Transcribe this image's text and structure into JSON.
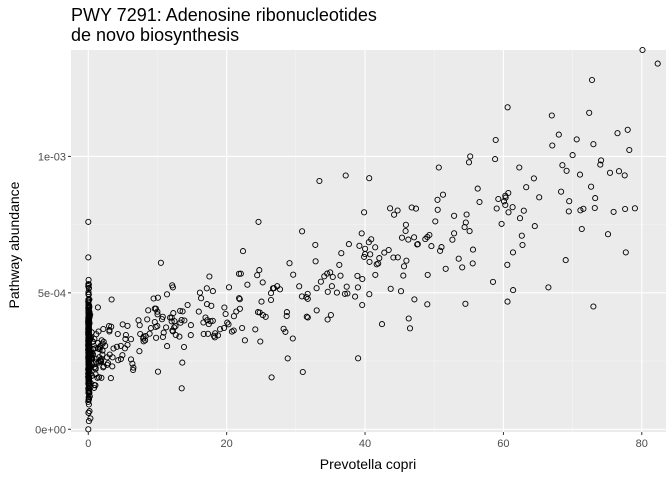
{
  "chart_data": {
    "type": "scatter",
    "title_lines": [
      "PWY 7291: Adenosine ribonucleotides",
      "de novo biosynthesis"
    ],
    "xlabel": "Prevotella copri",
    "ylabel": "Pathway abundance",
    "xlim": [
      -2.5,
      83.5
    ],
    "ylim": [
      -1e-05,
      0.00139
    ],
    "x_ticks": [
      0,
      20,
      40,
      60,
      80
    ],
    "x_tick_labels": [
      "0",
      "20",
      "40",
      "60",
      "80"
    ],
    "y_ticks": [
      0,
      0.0005,
      0.001
    ],
    "y_tick_labels": [
      "0e+00",
      "5e-04",
      "1e-03"
    ],
    "grid": true,
    "marker": "open-circle",
    "colors": {
      "panel": "#ebebeb",
      "grid_major": "#ffffff",
      "grid_minor": "#f5f5f5",
      "point": "#000000"
    },
    "highlight_points": [
      {
        "x": 0,
        "y": 0.00076
      },
      {
        "x": 0,
        "y": 0.00063
      },
      {
        "x": 0,
        "y": 0.0
      },
      {
        "x": 0.3,
        "y": 4e-05
      },
      {
        "x": 80.1,
        "y": 0.00139
      },
      {
        "x": 82.3,
        "y": 0.00134
      },
      {
        "x": 72.8,
        "y": 0.00128
      },
      {
        "x": 60.6,
        "y": 0.00118
      },
      {
        "x": 67,
        "y": 0.00115
      },
      {
        "x": 72.4,
        "y": 0.00116
      },
      {
        "x": 68,
        "y": 0.00108
      },
      {
        "x": 55.2,
        "y": 0.001
      },
      {
        "x": 58.8,
        "y": 0.00099
      },
      {
        "x": 37.2,
        "y": 0.00093
      },
      {
        "x": 33.4,
        "y": 0.00091
      },
      {
        "x": 40.6,
        "y": 0.00092
      },
      {
        "x": 74,
        "y": 0.00097
      },
      {
        "x": 75.4,
        "y": 0.00094
      },
      {
        "x": 79,
        "y": 0.00081
      },
      {
        "x": 24.6,
        "y": 0.00076
      },
      {
        "x": 73,
        "y": 0.00045
      },
      {
        "x": 39,
        "y": 0.00026
      },
      {
        "x": 26.5,
        "y": 0.00019
      },
      {
        "x": 31,
        "y": 0.00021
      },
      {
        "x": 13.5,
        "y": 0.00015
      },
      {
        "x": 17.5,
        "y": 0.00056
      },
      {
        "x": 10.5,
        "y": 0.00061
      },
      {
        "x": 23,
        "y": 0.00053
      },
      {
        "x": 66.5,
        "y": 0.00052
      },
      {
        "x": 61.4,
        "y": 0.00051
      },
      {
        "x": 69,
        "y": 0.00062
      },
      {
        "x": 58.5,
        "y": 0.00054
      },
      {
        "x": 54.5,
        "y": 0.00046
      },
      {
        "x": 46.5,
        "y": 0.00037
      }
    ],
    "trend": {
      "slope": 8.8e-06,
      "intercept": 0.000255,
      "noise": 9.5e-05,
      "n_main": 360,
      "n_zero": 330
    }
  }
}
